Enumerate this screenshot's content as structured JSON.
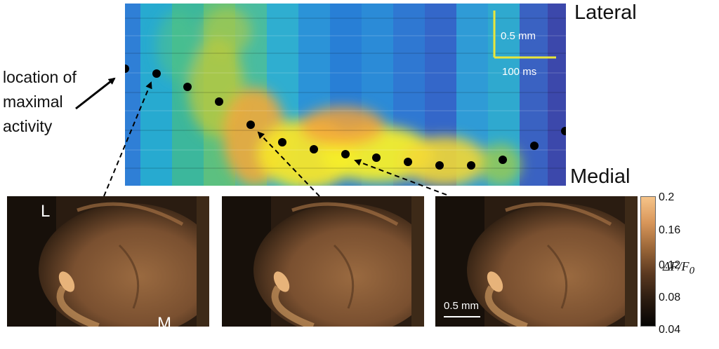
{
  "labels": {
    "lateral": "Lateral",
    "medial": "Medial",
    "location_line1": "location of",
    "location_line2": "maximal",
    "location_line3": "activity",
    "scale_space": "0.5 mm",
    "scale_time": "100 ms",
    "tile_lateral": "L",
    "tile_medial": "M",
    "tile_scale": "0.5 mm"
  },
  "colorbar": {
    "ticks": [
      "0.2",
      "0.16",
      "0.12",
      "0.08",
      "0.04"
    ],
    "title_main": "ΔF/F",
    "title_sub": "0"
  },
  "colors": {
    "kymograph_low": "#3d3fa6",
    "kymograph_mid": "#2fb0c8",
    "kymograph_high": "#f6ef28",
    "scalebar": "#e8e63a",
    "tissue": "#8a5a34"
  }
}
